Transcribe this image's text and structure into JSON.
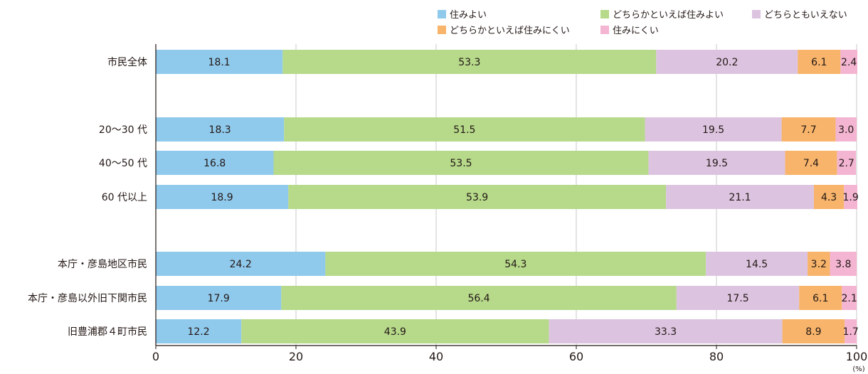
{
  "chart_data": {
    "type": "bar",
    "orientation": "horizontal",
    "stacked": true,
    "unit": "(%)",
    "xlim": [
      0,
      100
    ],
    "xticks": [
      0,
      20,
      40,
      60,
      80,
      100
    ],
    "grid": true,
    "legend_position": "top",
    "categories": [
      "市民全体",
      "20～30 代",
      "40～50 代",
      "60 代以上",
      "本庁・彦島地区市民",
      "本庁・彦島以外旧下関市民",
      "旧豊浦郡４町市民"
    ],
    "series": [
      {
        "name": "住みよい",
        "color": "#8fc9ec",
        "values": [
          18.1,
          18.3,
          16.8,
          18.9,
          24.2,
          17.9,
          12.2
        ]
      },
      {
        "name": "どちらかといえば住みよい",
        "color": "#b6d98a",
        "values": [
          53.3,
          51.5,
          53.5,
          53.9,
          54.3,
          56.4,
          43.9
        ]
      },
      {
        "name": "どちらともいえない",
        "color": "#dcc4e0",
        "values": [
          20.2,
          19.5,
          19.5,
          21.1,
          14.5,
          17.5,
          33.3
        ]
      },
      {
        "name": "どちらかといえば住みにくい",
        "color": "#f7b46a",
        "values": [
          6.1,
          7.7,
          7.4,
          4.3,
          3.2,
          6.1,
          8.9
        ]
      },
      {
        "name": "住みにくい",
        "color": "#f3b5d2",
        "values": [
          2.4,
          3.0,
          2.7,
          1.9,
          3.8,
          2.1,
          1.7
        ]
      }
    ]
  }
}
